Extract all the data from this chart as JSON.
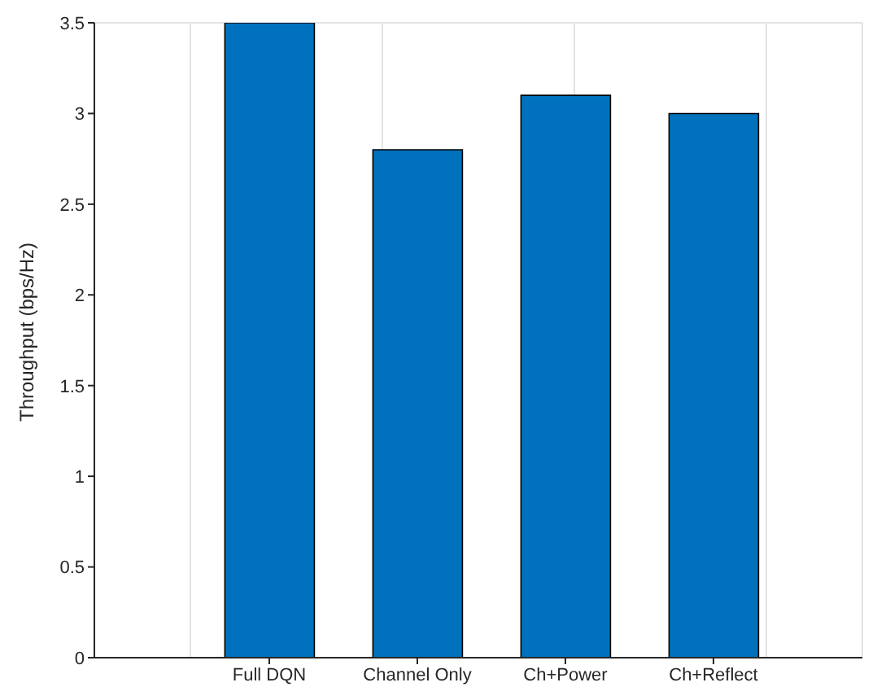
{
  "chart_data": {
    "type": "bar",
    "ylabel": "Throughput (bps/Hz)",
    "categories": [
      "Full DQN",
      "Channel Only",
      "Ch+Power",
      "Ch+Reflect"
    ],
    "values": [
      3.5,
      2.8,
      3.1,
      3.0
    ],
    "color": "#0072bd",
    "ylim": [
      0,
      3.5
    ],
    "yticks": [
      0,
      0.5,
      1,
      1.5,
      2,
      2.5,
      3,
      3.5
    ],
    "grid": true
  }
}
